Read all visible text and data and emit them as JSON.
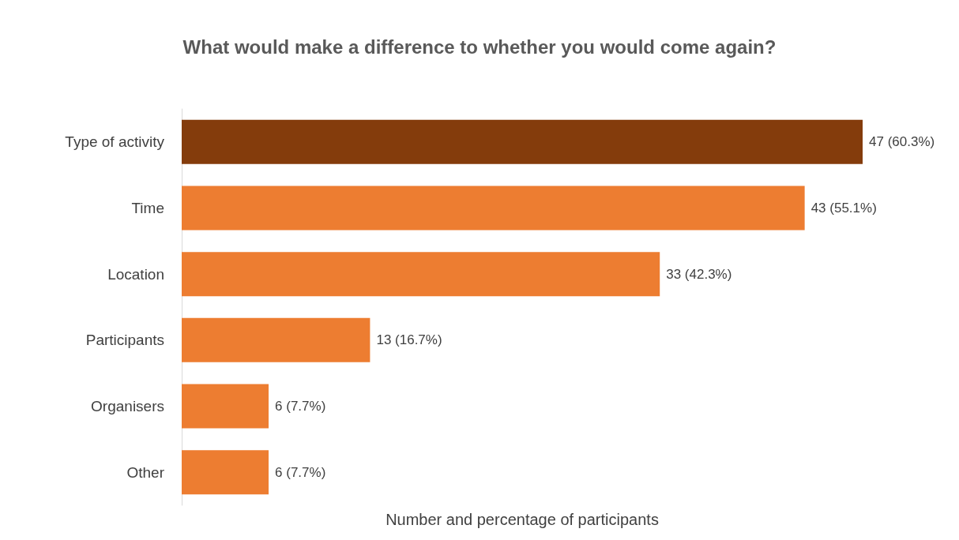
{
  "chart_data": {
    "type": "bar",
    "orientation": "horizontal",
    "title": "What would make a difference to whether you would come again?",
    "xlabel": "Number and percentage of participants",
    "categories": [
      "Type of activity",
      "Time",
      "Location",
      "Participants",
      "Organisers",
      "Other"
    ],
    "values": [
      47,
      43,
      33,
      13,
      6,
      6
    ],
    "colors": [
      "#843c0c",
      "#ed7d31",
      "#ed7d31",
      "#ed7d31",
      "#ed7d31",
      "#ed7d31"
    ],
    "value_labels": [
      "47 (60.3%)",
      "43 (55.1%)",
      "33 (42.3%)",
      "13 (16.7%)",
      "6 (7.7%)",
      "6 (7.7%)"
    ],
    "grid": false
  }
}
